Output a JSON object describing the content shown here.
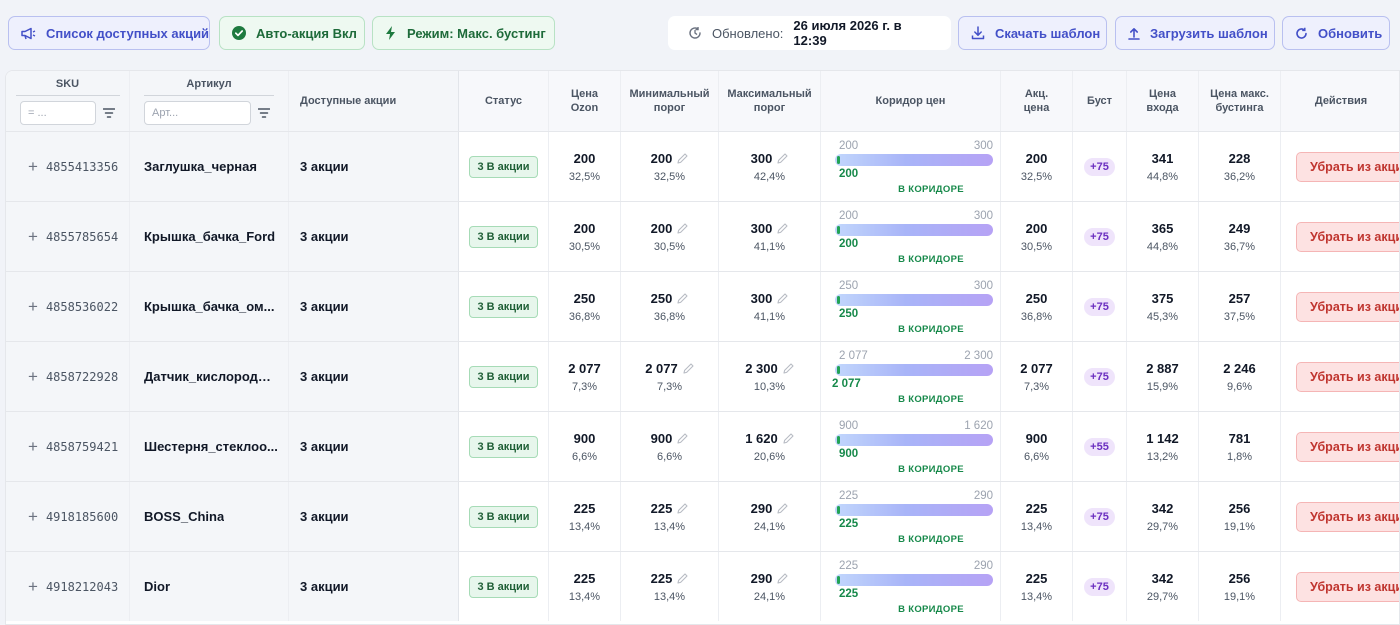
{
  "toolbar": {
    "promo_list": "Список доступных акций",
    "auto_promo": "Авто-акция Вкл",
    "mode": "Режим: Макс. бустинг",
    "updated_label": "Обновлено:",
    "updated_value": "26 июля 2026 г. в 12:39",
    "download": "Скачать шаблон",
    "upload": "Загрузить шаблон",
    "refresh": "Обновить"
  },
  "headers": {
    "sku": "SKU",
    "sku_placeholder": "= ...",
    "article": "Артикул",
    "article_placeholder": "Арт...",
    "available": "Доступные акции",
    "status": "Статус",
    "price_ozon_1": "Цена",
    "price_ozon_2": "Ozon",
    "min_1": "Минимальный",
    "min_2": "порог",
    "max_1": "Максимальный",
    "max_2": "порог",
    "corridor": "Коридор цен",
    "promo_price_1": "Акц.",
    "promo_price_2": "цена",
    "boost": "Буст",
    "entry_1": "Цена",
    "entry_2": "входа",
    "boost_max_1": "Цена макс.",
    "boost_max_2": "бустинга",
    "actions": "Действия"
  },
  "rows": [
    {
      "sku": "4855413356",
      "article": "Заглушка_черная",
      "available": "3 акции",
      "status": "3 В акции",
      "ozon": "200",
      "ozon_pct": "32,5%",
      "min": "200",
      "min_pct": "32,5%",
      "max": "300",
      "max_pct": "42,4%",
      "corr_low": "200",
      "corr_high": "300",
      "corr_cur": "200",
      "corr_label": "В КОРИДОРЕ",
      "promo": "200",
      "promo_pct": "32,5%",
      "boost": "+75",
      "entry": "341",
      "entry_pct": "44,8%",
      "bmax": "228",
      "bmax_pct": "36,2%",
      "action": "Убрать из акци"
    },
    {
      "sku": "4855785654",
      "article": "Крышка_бачка_Ford",
      "available": "3 акции",
      "status": "3 В акции",
      "ozon": "200",
      "ozon_pct": "30,5%",
      "min": "200",
      "min_pct": "30,5%",
      "max": "300",
      "max_pct": "41,1%",
      "corr_low": "200",
      "corr_high": "300",
      "corr_cur": "200",
      "corr_label": "В КОРИДОРЕ",
      "promo": "200",
      "promo_pct": "30,5%",
      "boost": "+75",
      "entry": "365",
      "entry_pct": "44,8%",
      "bmax": "249",
      "bmax_pct": "36,7%",
      "action": "Убрать из акци"
    },
    {
      "sku": "4858536022",
      "article": "Крышка_бачка_ом...",
      "available": "3 акции",
      "status": "3 В акции",
      "ozon": "250",
      "ozon_pct": "36,8%",
      "min": "250",
      "min_pct": "36,8%",
      "max": "300",
      "max_pct": "41,1%",
      "corr_low": "250",
      "corr_high": "300",
      "corr_cur": "250",
      "corr_label": "В КОРИДОРЕ",
      "promo": "250",
      "promo_pct": "36,8%",
      "boost": "+75",
      "entry": "375",
      "entry_pct": "45,3%",
      "bmax": "257",
      "bmax_pct": "37,5%",
      "action": "Убрать из акци"
    },
    {
      "sku": "4858722928",
      "article": "Датчик_кислорода_...",
      "available": "3 акции",
      "status": "3 В акции",
      "ozon": "2 077",
      "ozon_pct": "7,3%",
      "min": "2 077",
      "min_pct": "7,3%",
      "max": "2 300",
      "max_pct": "10,3%",
      "corr_low": "2 077",
      "corr_high": "2 300",
      "corr_cur": "2 077",
      "corr_label": "В КОРИДОРЕ",
      "promo": "2 077",
      "promo_pct": "7,3%",
      "boost": "+75",
      "entry": "2 887",
      "entry_pct": "15,9%",
      "bmax": "2 246",
      "bmax_pct": "9,6%",
      "action": "Убрать из акци"
    },
    {
      "sku": "4858759421",
      "article": "Шестерня_стеклоо...",
      "available": "3 акции",
      "status": "3 В акции",
      "ozon": "900",
      "ozon_pct": "6,6%",
      "min": "900",
      "min_pct": "6,6%",
      "max": "1 620",
      "max_pct": "20,6%",
      "corr_low": "900",
      "corr_high": "1 620",
      "corr_cur": "900",
      "corr_label": "В КОРИДОРЕ",
      "promo": "900",
      "promo_pct": "6,6%",
      "boost": "+55",
      "entry": "1 142",
      "entry_pct": "13,2%",
      "bmax": "781",
      "bmax_pct": "1,8%",
      "action": "Убрать из акци"
    },
    {
      "sku": "4918185600",
      "article": "BOSS_China",
      "available": "3 акции",
      "status": "3 В акции",
      "ozon": "225",
      "ozon_pct": "13,4%",
      "min": "225",
      "min_pct": "13,4%",
      "max": "290",
      "max_pct": "24,1%",
      "corr_low": "225",
      "corr_high": "290",
      "corr_cur": "225",
      "corr_label": "В КОРИДОРЕ",
      "promo": "225",
      "promo_pct": "13,4%",
      "boost": "+75",
      "entry": "342",
      "entry_pct": "29,7%",
      "bmax": "256",
      "bmax_pct": "19,1%",
      "action": "Убрать из акци"
    },
    {
      "sku": "4918212043",
      "article": "Dior",
      "available": "3 акции",
      "status": "3 В акции",
      "ozon": "225",
      "ozon_pct": "13,4%",
      "min": "225",
      "min_pct": "13,4%",
      "max": "290",
      "max_pct": "24,1%",
      "corr_low": "225",
      "corr_high": "290",
      "corr_cur": "225",
      "corr_label": "В КОРИДОРЕ",
      "promo": "225",
      "promo_pct": "13,4%",
      "boost": "+75",
      "entry": "342",
      "entry_pct": "29,7%",
      "bmax": "256",
      "bmax_pct": "19,1%",
      "action": "Убрать из акци"
    }
  ],
  "colors": {
    "accent": "#4350c8",
    "success": "#16894a",
    "danger": "#c0352f",
    "boost": "#6b2fc0"
  }
}
